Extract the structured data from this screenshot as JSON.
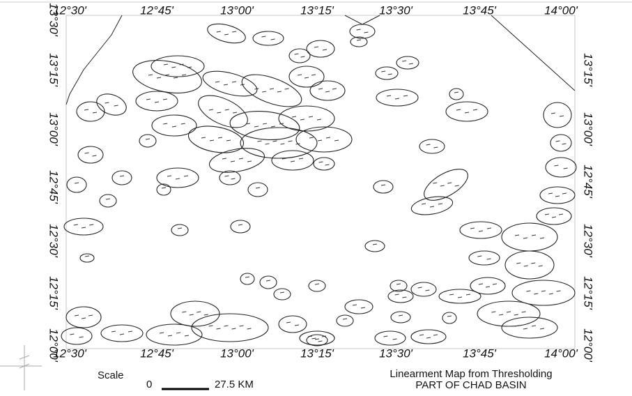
{
  "map": {
    "top_labels": [
      "12°30'",
      "12°45'",
      "13°00'",
      "13°15'",
      "13°30'",
      "13°45'",
      "14°00'"
    ],
    "bottom_labels": [
      "12°30'",
      "12°45'",
      "13°00'",
      "13°15'",
      "13°30'",
      "13°45'",
      "14°00'"
    ],
    "left_labels": [
      "13°30'",
      "13°15'",
      "13°00'",
      "12°45'",
      "12°30'",
      "12°15'",
      "12°00'"
    ],
    "right_labels": [
      "13°15'",
      "13°00'",
      "12°45'",
      "12°30'",
      "12°15'",
      "12°00'"
    ],
    "scale": {
      "title": "Scale",
      "start": "0",
      "end": "27.5 KM"
    },
    "title": "Linearment Map from Thresholding",
    "subtitle": "PART OF CHAD BASIN"
  }
}
